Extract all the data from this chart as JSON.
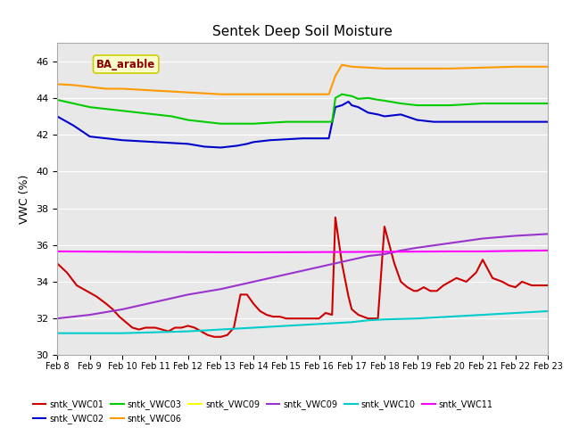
{
  "title": "Sentek Deep Soil Moisture",
  "ylabel": "VWC (%)",
  "ylim": [
    30,
    47
  ],
  "annotation": "BA_arable",
  "bg_color": "#e8e8e8",
  "yticks": [
    30,
    32,
    34,
    36,
    38,
    40,
    42,
    44,
    46
  ],
  "xtick_labels": [
    "Feb 8",
    "Feb 9",
    "Feb 10",
    "Feb 11",
    "Feb 12",
    "Feb 13",
    "Feb 14",
    "Feb 15",
    "Feb 16",
    "Feb 17",
    "Feb 18",
    "Feb 19",
    "Feb 20",
    "Feb 21",
    "Feb 22",
    "Feb 23"
  ],
  "series": [
    {
      "name": "sntk_VWC01",
      "color": "#cc0000",
      "lw": 1.5,
      "points": [
        [
          0,
          35.0
        ],
        [
          0.3,
          34.5
        ],
        [
          0.6,
          33.8
        ],
        [
          0.9,
          33.5
        ],
        [
          1.2,
          33.2
        ],
        [
          1.5,
          32.8
        ],
        [
          1.7,
          32.5
        ],
        [
          1.9,
          32.1
        ],
        [
          2.1,
          31.8
        ],
        [
          2.3,
          31.5
        ],
        [
          2.5,
          31.4
        ],
        [
          2.7,
          31.5
        ],
        [
          3.0,
          31.5
        ],
        [
          3.2,
          31.4
        ],
        [
          3.4,
          31.3
        ],
        [
          3.6,
          31.5
        ],
        [
          3.8,
          31.5
        ],
        [
          4.0,
          31.6
        ],
        [
          4.2,
          31.5
        ],
        [
          4.4,
          31.3
        ],
        [
          4.6,
          31.1
        ],
        [
          4.8,
          31.0
        ],
        [
          5.0,
          31.0
        ],
        [
          5.2,
          31.1
        ],
        [
          5.4,
          31.5
        ],
        [
          5.6,
          33.3
        ],
        [
          5.8,
          33.3
        ],
        [
          6.0,
          32.8
        ],
        [
          6.2,
          32.4
        ],
        [
          6.4,
          32.2
        ],
        [
          6.6,
          32.1
        ],
        [
          6.8,
          32.1
        ],
        [
          7.0,
          32.0
        ],
        [
          7.2,
          32.0
        ],
        [
          7.5,
          32.0
        ],
        [
          7.8,
          32.0
        ],
        [
          8.0,
          32.0
        ],
        [
          8.2,
          32.3
        ],
        [
          8.4,
          32.2
        ],
        [
          8.5,
          37.5
        ],
        [
          8.7,
          35.0
        ],
        [
          8.9,
          33.2
        ],
        [
          9.0,
          32.5
        ],
        [
          9.2,
          32.2
        ],
        [
          9.5,
          32.0
        ],
        [
          9.8,
          32.0
        ],
        [
          10.0,
          37.0
        ],
        [
          10.15,
          36.0
        ],
        [
          10.3,
          35.0
        ],
        [
          10.5,
          34.0
        ],
        [
          10.7,
          33.7
        ],
        [
          10.9,
          33.5
        ],
        [
          11.0,
          33.5
        ],
        [
          11.2,
          33.7
        ],
        [
          11.4,
          33.5
        ],
        [
          11.6,
          33.5
        ],
        [
          11.8,
          33.8
        ],
        [
          12.0,
          34.0
        ],
        [
          12.2,
          34.2
        ],
        [
          12.5,
          34.0
        ],
        [
          12.8,
          34.5
        ],
        [
          13.0,
          35.2
        ],
        [
          13.3,
          34.2
        ],
        [
          13.6,
          34.0
        ],
        [
          13.8,
          33.8
        ],
        [
          14.0,
          33.7
        ],
        [
          14.2,
          34.0
        ],
        [
          14.5,
          33.8
        ],
        [
          14.8,
          33.8
        ],
        [
          15.0,
          33.8
        ]
      ]
    },
    {
      "name": "sntk_VWC02",
      "color": "#0000cc",
      "lw": 1.5,
      "points": [
        [
          0,
          43.0
        ],
        [
          0.5,
          42.5
        ],
        [
          1.0,
          41.9
        ],
        [
          1.5,
          41.8
        ],
        [
          2.0,
          41.7
        ],
        [
          2.5,
          41.65
        ],
        [
          3.0,
          41.6
        ],
        [
          3.5,
          41.55
        ],
        [
          4.0,
          41.5
        ],
        [
          4.5,
          41.35
        ],
        [
          5.0,
          41.3
        ],
        [
          5.5,
          41.4
        ],
        [
          5.8,
          41.5
        ],
        [
          6.0,
          41.6
        ],
        [
          6.5,
          41.7
        ],
        [
          7.0,
          41.75
        ],
        [
          7.5,
          41.8
        ],
        [
          8.0,
          41.8
        ],
        [
          8.3,
          41.8
        ],
        [
          8.5,
          43.5
        ],
        [
          8.7,
          43.6
        ],
        [
          8.9,
          43.8
        ],
        [
          9.0,
          43.6
        ],
        [
          9.2,
          43.5
        ],
        [
          9.5,
          43.2
        ],
        [
          9.8,
          43.1
        ],
        [
          10.0,
          43.0
        ],
        [
          10.5,
          43.1
        ],
        [
          11.0,
          42.8
        ],
        [
          11.5,
          42.7
        ],
        [
          12.0,
          42.7
        ],
        [
          12.5,
          42.7
        ],
        [
          13.0,
          42.7
        ],
        [
          14.0,
          42.7
        ],
        [
          15.0,
          42.7
        ]
      ]
    },
    {
      "name": "sntk_VWC03",
      "color": "#00cc00",
      "lw": 1.5,
      "points": [
        [
          0,
          43.9
        ],
        [
          0.5,
          43.7
        ],
        [
          1.0,
          43.5
        ],
        [
          1.5,
          43.4
        ],
        [
          2.0,
          43.3
        ],
        [
          2.5,
          43.2
        ],
        [
          3.0,
          43.1
        ],
        [
          3.5,
          43.0
        ],
        [
          4.0,
          42.8
        ],
        [
          4.5,
          42.7
        ],
        [
          5.0,
          42.6
        ],
        [
          5.5,
          42.6
        ],
        [
          6.0,
          42.6
        ],
        [
          6.5,
          42.65
        ],
        [
          7.0,
          42.7
        ],
        [
          7.5,
          42.7
        ],
        [
          8.0,
          42.7
        ],
        [
          8.4,
          42.7
        ],
        [
          8.5,
          44.0
        ],
        [
          8.7,
          44.2
        ],
        [
          9.0,
          44.1
        ],
        [
          9.2,
          43.95
        ],
        [
          9.5,
          44.0
        ],
        [
          9.8,
          43.9
        ],
        [
          10.0,
          43.85
        ],
        [
          10.5,
          43.7
        ],
        [
          11.0,
          43.6
        ],
        [
          11.5,
          43.6
        ],
        [
          12.0,
          43.6
        ],
        [
          12.5,
          43.65
        ],
        [
          13.0,
          43.7
        ],
        [
          14.0,
          43.7
        ],
        [
          15.0,
          43.7
        ]
      ]
    },
    {
      "name": "sntk_VWC06",
      "color": "#ff9900",
      "lw": 1.5,
      "points": [
        [
          0,
          44.75
        ],
        [
          0.5,
          44.7
        ],
        [
          1.0,
          44.6
        ],
        [
          1.5,
          44.5
        ],
        [
          2.0,
          44.5
        ],
        [
          2.5,
          44.45
        ],
        [
          3.0,
          44.4
        ],
        [
          3.5,
          44.35
        ],
        [
          4.0,
          44.3
        ],
        [
          4.5,
          44.25
        ],
        [
          5.0,
          44.2
        ],
        [
          5.5,
          44.2
        ],
        [
          6.0,
          44.2
        ],
        [
          6.5,
          44.2
        ],
        [
          7.0,
          44.2
        ],
        [
          7.5,
          44.2
        ],
        [
          8.0,
          44.2
        ],
        [
          8.3,
          44.2
        ],
        [
          8.5,
          45.2
        ],
        [
          8.7,
          45.8
        ],
        [
          9.0,
          45.7
        ],
        [
          9.5,
          45.65
        ],
        [
          10.0,
          45.6
        ],
        [
          10.5,
          45.6
        ],
        [
          11.0,
          45.6
        ],
        [
          12.0,
          45.6
        ],
        [
          13.0,
          45.65
        ],
        [
          14.0,
          45.7
        ],
        [
          15.0,
          45.7
        ]
      ]
    },
    {
      "name": "sntk_VWC09",
      "color": "#ffff00",
      "lw": 0,
      "points": []
    },
    {
      "name": "sntk_VWC09",
      "color": "#9933cc",
      "lw": 1.5,
      "points": [
        [
          0,
          32.0
        ],
        [
          1.0,
          32.2
        ],
        [
          2.0,
          32.5
        ],
        [
          3.0,
          32.9
        ],
        [
          4.0,
          33.3
        ],
        [
          5.0,
          33.6
        ],
        [
          6.0,
          34.0
        ],
        [
          7.0,
          34.4
        ],
        [
          8.0,
          34.8
        ],
        [
          8.5,
          35.0
        ],
        [
          9.0,
          35.2
        ],
        [
          9.5,
          35.4
        ],
        [
          10.0,
          35.5
        ],
        [
          10.5,
          35.7
        ],
        [
          11.0,
          35.85
        ],
        [
          12.0,
          36.1
        ],
        [
          13.0,
          36.35
        ],
        [
          14.0,
          36.5
        ],
        [
          15.0,
          36.6
        ]
      ]
    },
    {
      "name": "sntk_VWC10",
      "color": "#00cccc",
      "lw": 1.5,
      "points": [
        [
          0,
          31.2
        ],
        [
          1.0,
          31.2
        ],
        [
          2.0,
          31.2
        ],
        [
          3.0,
          31.25
        ],
        [
          4.0,
          31.3
        ],
        [
          5.0,
          31.4
        ],
        [
          6.0,
          31.5
        ],
        [
          7.0,
          31.6
        ],
        [
          8.0,
          31.7
        ],
        [
          8.5,
          31.75
        ],
        [
          9.0,
          31.8
        ],
        [
          9.5,
          31.9
        ],
        [
          10.0,
          31.95
        ],
        [
          11.0,
          32.0
        ],
        [
          12.0,
          32.1
        ],
        [
          13.0,
          32.2
        ],
        [
          14.0,
          32.3
        ],
        [
          15.0,
          32.4
        ]
      ]
    },
    {
      "name": "sntk_VWC11",
      "color": "#ff00ff",
      "lw": 1.5,
      "points": [
        [
          0,
          35.65
        ],
        [
          3.0,
          35.62
        ],
        [
          6.0,
          35.6
        ],
        [
          9.0,
          35.62
        ],
        [
          12.0,
          35.65
        ],
        [
          13.0,
          35.65
        ],
        [
          14.0,
          35.68
        ],
        [
          15.0,
          35.7
        ]
      ]
    }
  ],
  "legend_entries": [
    {
      "label": "sntk_VWC01",
      "color": "#cc0000"
    },
    {
      "label": "sntk_VWC02",
      "color": "#0000cc"
    },
    {
      "label": "sntk_VWC03",
      "color": "#00cc00"
    },
    {
      "label": "sntk_VWC06",
      "color": "#ff9900"
    },
    {
      "label": "sntk_VWC09",
      "color": "#ffff00"
    },
    {
      "label": "sntk_VWC09",
      "color": "#9933cc"
    },
    {
      "label": "sntk_VWC10",
      "color": "#00cccc"
    },
    {
      "label": "sntk_VWC11",
      "color": "#ff00ff"
    }
  ]
}
